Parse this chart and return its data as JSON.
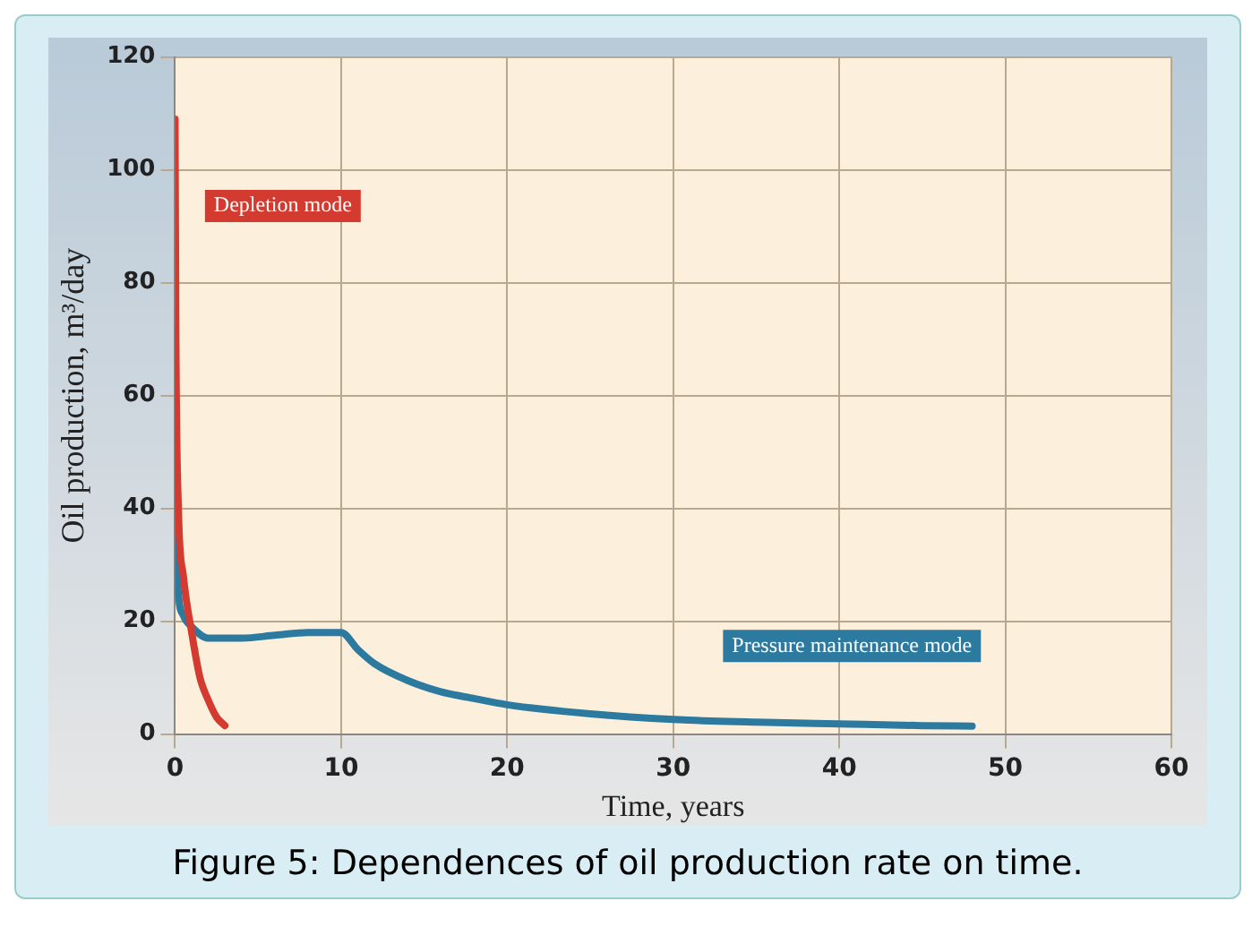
{
  "chart_data": {
    "type": "line",
    "xlabel": "Time, years",
    "ylabel": "Oil production, m³/day",
    "annotations": [
      "Figure 5: Dependences of oil production rate on time."
    ],
    "xlim": [
      0,
      60
    ],
    "xticks": [
      0,
      10,
      20,
      30,
      40,
      50,
      60
    ],
    "ylim": [
      0,
      120
    ],
    "yticks": [
      0,
      20,
      40,
      60,
      80,
      100,
      120
    ],
    "grid": true,
    "legend": false,
    "marker": "none",
    "series": [
      {
        "name": "Depletion mode",
        "color": "#d33b30",
        "x": [
          0,
          0.05,
          0.2,
          0.5,
          1,
          1.5,
          2,
          2.5,
          3
        ],
        "values": [
          109,
          70,
          40,
          28,
          18,
          10,
          6,
          3,
          1.5
        ]
      },
      {
        "name": "Pressure maintenance mode",
        "color": "#2c7aa0",
        "x": [
          0,
          0.05,
          0.2,
          0.5,
          1,
          2,
          4,
          6,
          8,
          10,
          11,
          12,
          14,
          16,
          18,
          20,
          25,
          30,
          35,
          40,
          45,
          48
        ],
        "values": [
          72,
          40,
          25,
          21,
          19,
          17,
          17,
          17.5,
          18,
          18,
          15,
          12.5,
          9.5,
          7.5,
          6.3,
          5.2,
          3.6,
          2.6,
          2.1,
          1.8,
          1.5,
          1.4
        ]
      }
    ]
  }
}
